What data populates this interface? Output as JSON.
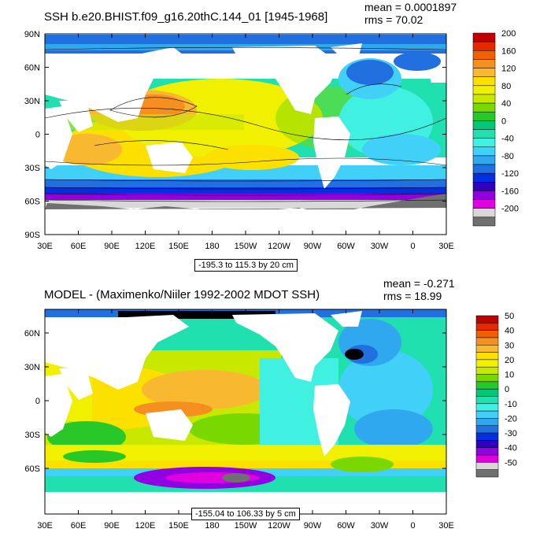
{
  "panels": [
    {
      "title": "SSH b.e20.BHIST.f09_g16.20thC.144_01 [1945-1968]",
      "mean": "mean = 0.0001897",
      "rms": "rms = 70.02",
      "range": "-195.3 to 115.3 by 20 cm",
      "lat_labels": [
        "90N",
        "60N",
        "30N",
        "0",
        "30S",
        "60S",
        "90S"
      ],
      "lon_labels": [
        "30E",
        "60E",
        "90E",
        "120E",
        "150E",
        "180",
        "150W",
        "120W",
        "90W",
        "60W",
        "30W",
        "0",
        "30E"
      ],
      "colorbar_labels": [
        "200",
        "160",
        "120",
        "80",
        "40",
        "0",
        "-40",
        "-80",
        "-120",
        "-160",
        "-200"
      ]
    },
    {
      "title": "MODEL - (Maximenko/Niiler 1992-2002 MDOT SSH)",
      "mean": "mean = -0.271",
      "rms": "rms = 18.99",
      "range": "-155.04 to 106.33 by 5 cm",
      "lat_labels": [
        "60N",
        "30N",
        "0",
        "30S",
        "60S"
      ],
      "lon_labels": [
        "30E",
        "60E",
        "90E",
        "120E",
        "150E",
        "180",
        "150W",
        "120W",
        "90W",
        "60W",
        "30W",
        "0",
        "30E"
      ],
      "colorbar_labels": [
        "50",
        "40",
        "30",
        "20",
        "10",
        "0",
        "-10",
        "-20",
        "-30",
        "-40",
        "-50"
      ]
    }
  ],
  "colorbar_colors": [
    "#c00000",
    "#e62800",
    "#f06000",
    "#f59020",
    "#f8b830",
    "#fce000",
    "#f0f000",
    "#c8e800",
    "#78d800",
    "#28c828",
    "#00c878",
    "#20e0b0",
    "#40f0e0",
    "#40d0f8",
    "#30a8f0",
    "#2070e0",
    "#0030e0",
    "#3000c0",
    "#9000e0",
    "#e000e0",
    "#d8d8d8",
    "#707070"
  ]
}
